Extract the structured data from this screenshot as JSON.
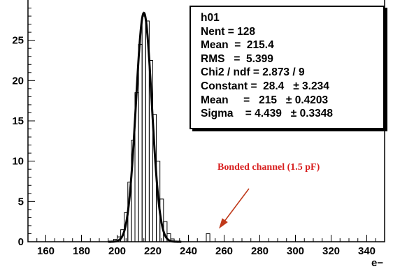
{
  "chart_data": {
    "type": "histogram",
    "histogram_name": "h01",
    "xlabel": "e−",
    "ylabel": "",
    "xlim": [
      150,
      350
    ],
    "ylim": [
      0,
      30
    ],
    "x_ticks": [
      160,
      180,
      200,
      220,
      240,
      260,
      280,
      300,
      320,
      340
    ],
    "y_ticks": [
      0,
      5,
      10,
      15,
      20,
      25
    ],
    "bins": [
      {
        "x": [
          198,
          200
        ],
        "count": 0.3
      },
      {
        "x": [
          200,
          202
        ],
        "count": 0.6
      },
      {
        "x": [
          202,
          204
        ],
        "count": 1.5
      },
      {
        "x": [
          204,
          206
        ],
        "count": 3.6
      },
      {
        "x": [
          206,
          208
        ],
        "count": 7.4
      },
      {
        "x": [
          208,
          210
        ],
        "count": 12.6
      },
      {
        "x": [
          210,
          212
        ],
        "count": 18.5
      },
      {
        "x": [
          212,
          214
        ],
        "count": 24.5
      },
      {
        "x": [
          214,
          216
        ],
        "count": 28.0
      },
      {
        "x": [
          216,
          218
        ],
        "count": 27.4
      },
      {
        "x": [
          218,
          220
        ],
        "count": 22.5
      },
      {
        "x": [
          220,
          222
        ],
        "count": 15.8
      },
      {
        "x": [
          222,
          224
        ],
        "count": 10.0
      },
      {
        "x": [
          224,
          226
        ],
        "count": 5.3
      },
      {
        "x": [
          226,
          228
        ],
        "count": 2.5
      },
      {
        "x": [
          228,
          230
        ],
        "count": 1.0
      },
      {
        "x": [
          230,
          232
        ],
        "count": 0.35
      },
      {
        "x": [
          250,
          252
        ],
        "count": 1.0
      }
    ],
    "fit": {
      "type": "gaussian",
      "constant": 28.4,
      "mean": 215,
      "sigma": 4.439,
      "color": "#000000"
    },
    "stats": {
      "title": "h01",
      "lines": [
        "Nent = 128",
        "Mean  =  215.4",
        "RMS   =  5.399",
        "Chi2 / ndf = 2.873 / 9",
        "Constant =  28.4   ± 3.234",
        "Mean     =   215   ± 0.4203",
        "Sigma    = 4.439   ± 0.3348"
      ]
    },
    "annotation": {
      "text": "Bonded channel (1.5 pF)",
      "color": "#d81e1e",
      "arrow_color": "#c0391a",
      "points_to_x": 252
    }
  }
}
